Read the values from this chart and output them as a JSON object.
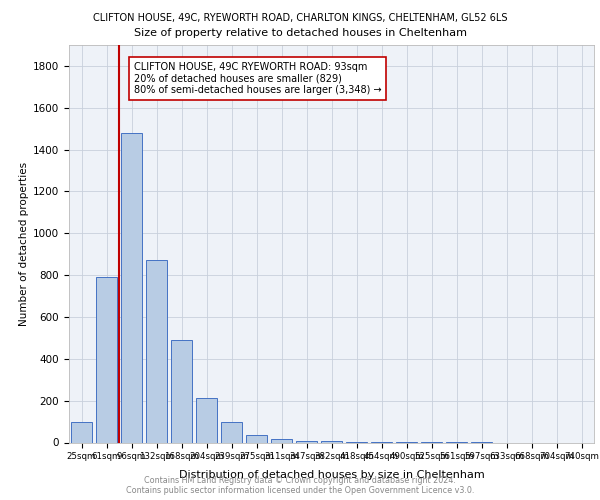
{
  "title1": "CLIFTON HOUSE, 49C, RYEWORTH ROAD, CHARLTON KINGS, CHELTENHAM, GL52 6LS",
  "title2": "Size of property relative to detached houses in Cheltenham",
  "xlabel": "Distribution of detached houses by size in Cheltenham",
  "ylabel": "Number of detached properties",
  "categories": [
    "25sqm",
    "61sqm",
    "96sqm",
    "132sqm",
    "168sqm",
    "204sqm",
    "239sqm",
    "275sqm",
    "311sqm",
    "347sqm",
    "382sqm",
    "418sqm",
    "454sqm",
    "490sqm",
    "525sqm",
    "561sqm",
    "597sqm",
    "633sqm",
    "668sqm",
    "704sqm",
    "740sqm"
  ],
  "values": [
    100,
    790,
    1480,
    870,
    490,
    215,
    100,
    35,
    15,
    8,
    5,
    4,
    3,
    2,
    1,
    1,
    1,
    0,
    0,
    0,
    0
  ],
  "bar_color": "#b8cce4",
  "bar_edgecolor": "#4472c4",
  "vline_index": 1.5,
  "vline_color": "#c00000",
  "annotation_line1": "CLIFTON HOUSE, 49C RYEWORTH ROAD: 93sqm",
  "annotation_line2": "20% of detached houses are smaller (829)",
  "annotation_line3": "80% of semi-detached houses are larger (3,348) →",
  "annotation_box_edgecolor": "#c00000",
  "annotation_box_facecolor": "#ffffff",
  "ylim": [
    0,
    1900
  ],
  "yticks": [
    0,
    200,
    400,
    600,
    800,
    1000,
    1200,
    1400,
    1600,
    1800
  ],
  "footer1": "Contains HM Land Registry data © Crown copyright and database right 2024.",
  "footer2": "Contains public sector information licensed under the Open Government Licence v3.0.",
  "background_color": "#ffffff",
  "plot_bg_color": "#eef2f8",
  "grid_color": "#c8d0dc"
}
